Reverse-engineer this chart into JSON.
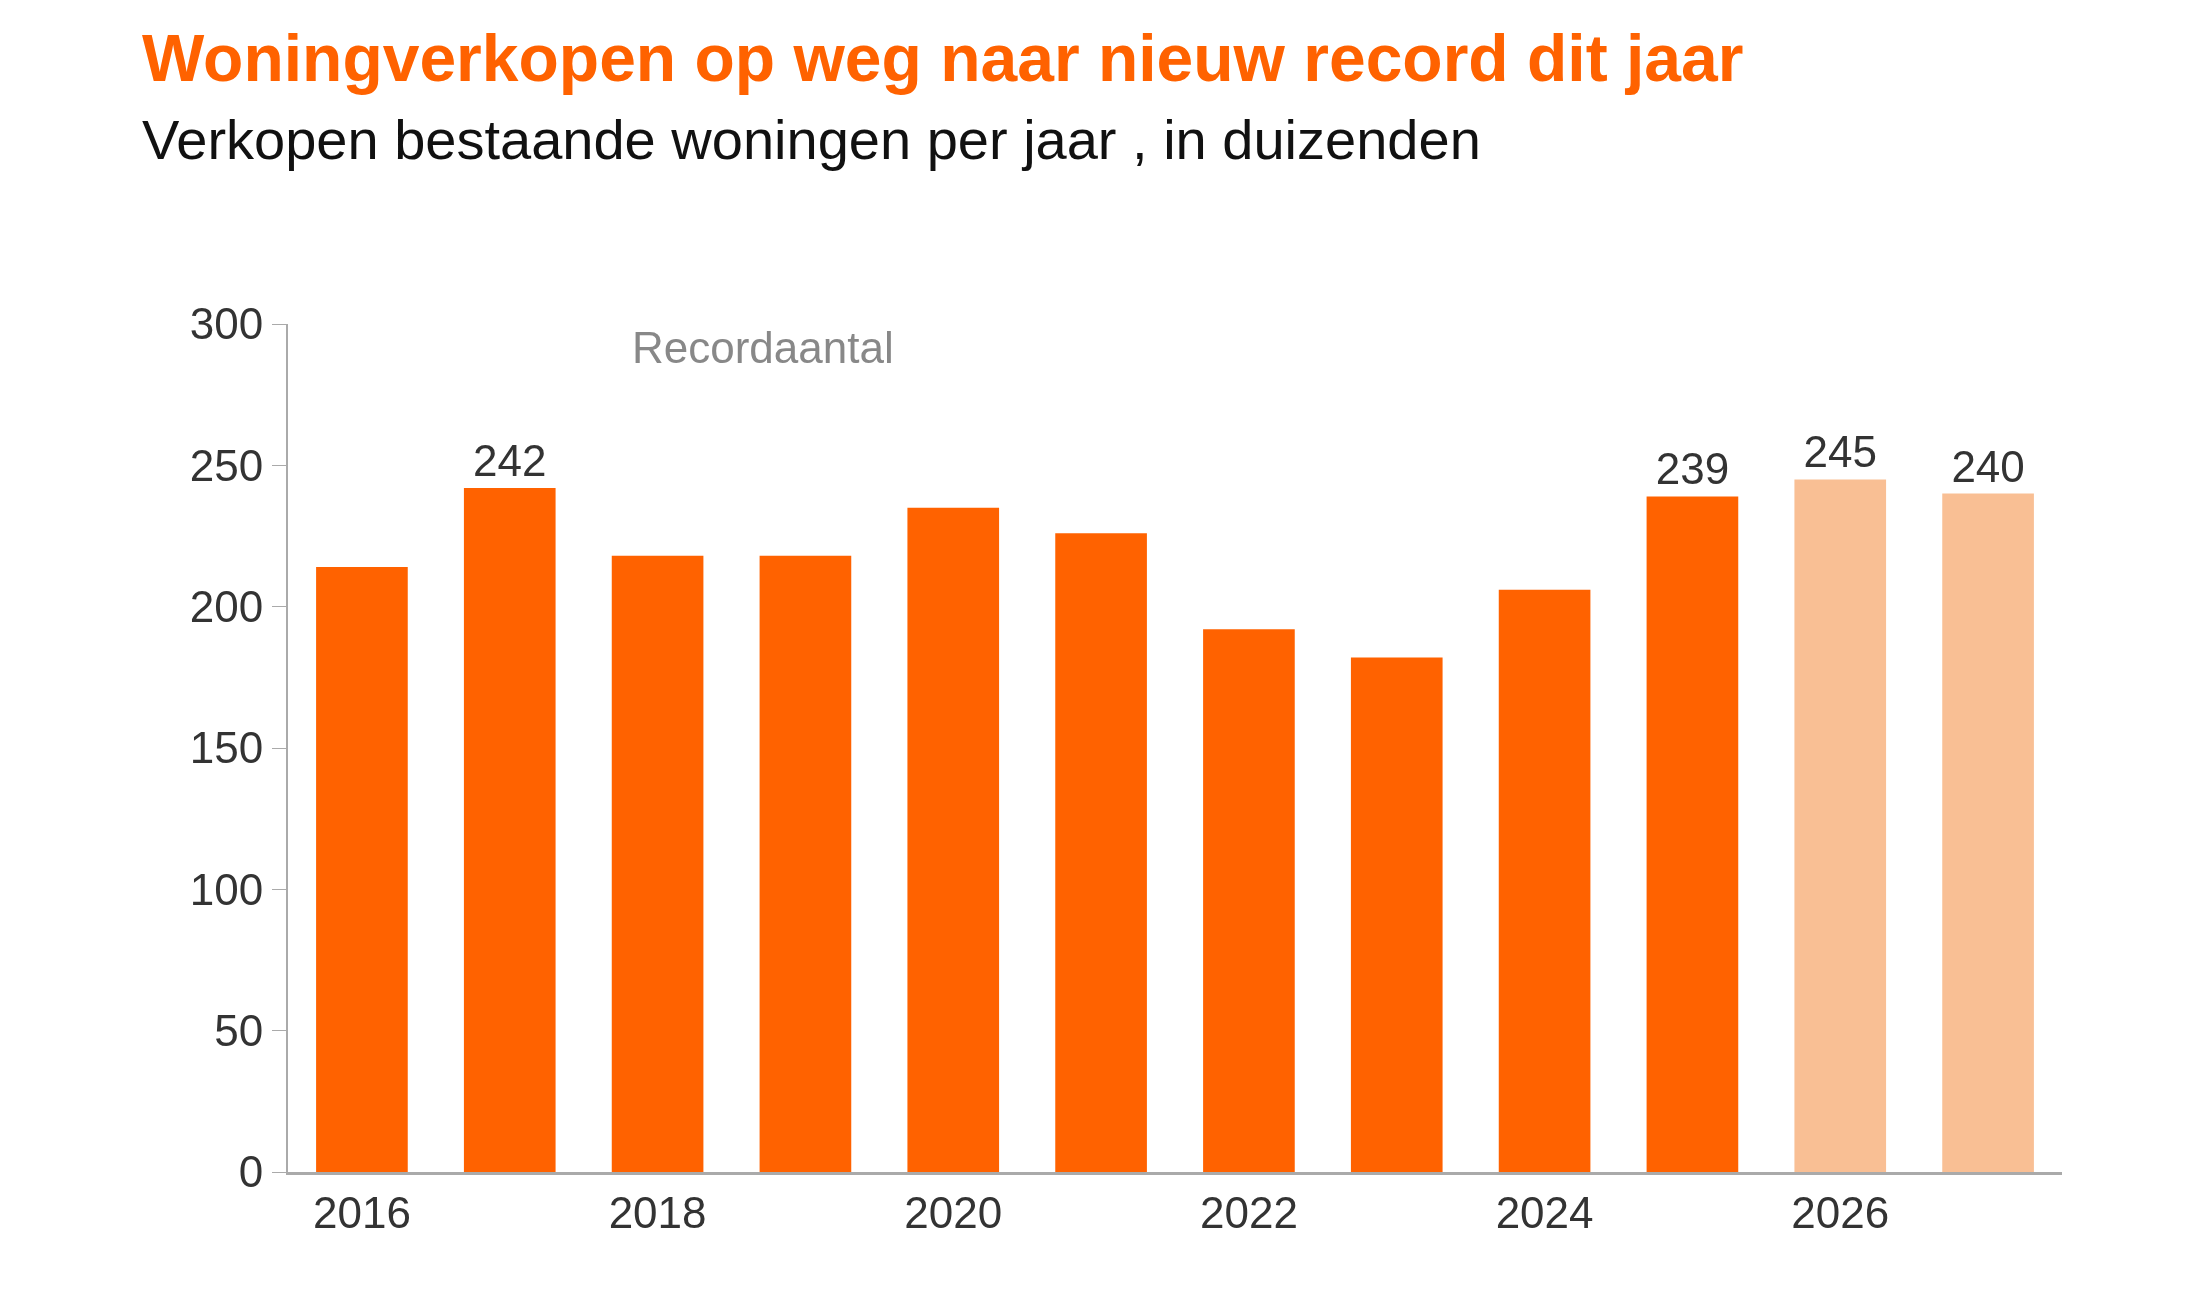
{
  "chart_data": {
    "type": "bar",
    "title": "Woningverkopen op weg naar nieuw record dit jaar",
    "subtitle": "Verkopen bestaande woningen per jaar , in duizenden",
    "categories": [
      "2016",
      null,
      "2018",
      null,
      "2020",
      null,
      "2022",
      null,
      "2024",
      null,
      "2026",
      null
    ],
    "values": [
      214,
      242,
      218,
      218,
      235,
      226,
      192,
      182,
      206,
      239,
      245,
      240
    ],
    "colors": [
      "#ff6200",
      "#ff6200",
      "#ff6200",
      "#ff6200",
      "#ff6200",
      "#ff6200",
      "#ff6200",
      "#ff6200",
      "#ff6200",
      "#ff6200",
      "#f9bf94",
      "#f9bf94"
    ],
    "value_labels": [
      null,
      "242",
      null,
      null,
      null,
      null,
      null,
      null,
      null,
      "239",
      "245",
      "240"
    ],
    "annotations": [
      "Recordaantal"
    ],
    "ylim": [
      0,
      300
    ],
    "yticks": [
      0,
      50,
      100,
      150,
      200,
      250,
      300
    ]
  }
}
